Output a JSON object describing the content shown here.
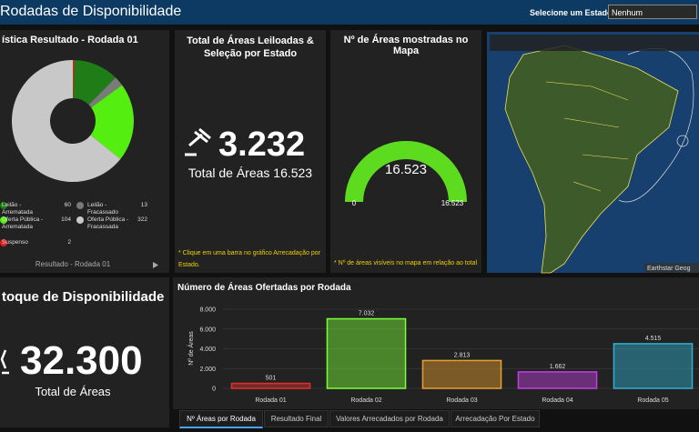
{
  "header": {
    "title": "Rodadas de Disponibilidade",
    "state_label": "Selecione um Estado",
    "state_value": "Nenhum"
  },
  "result_panel": {
    "title": "ística Resultado - Rodada 01",
    "footer": "Resultado - Rodada 01",
    "chart": {
      "type": "pie",
      "categories": [
        "Suspenso",
        "Leilão - Arrematada",
        "Leilão - Fracassado",
        "Oferta Pública - Arrematada",
        "Oferta Pública - Fracassada"
      ],
      "values": [
        2,
        60,
        13,
        104,
        322
      ],
      "colors": [
        "#e02020",
        "#1f7d17",
        "#7a7a7a",
        "#55ee11",
        "#c8c8c8"
      ]
    }
  },
  "auction_panel": {
    "title": "Total de Áreas Leiloadas & Seleção por Estado",
    "value": "3.232",
    "subtitle": "Total de Áreas 16.523",
    "note": "* Clique em uma barra no gráfico Arrecadação por Estado."
  },
  "map_count_panel": {
    "title": "Nº de Áreas mostradas no Mapa",
    "note": "* Nº de áreas visíveis no mapa em relação ao total",
    "gauge": {
      "type": "gauge",
      "value": 16523,
      "value_label": "16.523",
      "min": 0,
      "max": 16523,
      "max_label": "16.523",
      "color": "#5ddb1f"
    }
  },
  "map": {
    "attribution": "Earthstar Geog"
  },
  "stock_panel": {
    "title": "toque de Disponibilidade",
    "value": "32.300",
    "subtitle": "Total de Áreas"
  },
  "rounds_panel": {
    "chart": {
      "type": "bar",
      "title": "Número de Áreas Ofertadas por Rodada",
      "y_label": "Nº de Áreas",
      "categories": [
        "Rodada 01",
        "Rodada 02",
        "Rodada 03",
        "Rodada 04",
        "Rodada 05"
      ],
      "values": [
        501,
        7032,
        2813,
        1662,
        4515
      ],
      "value_labels": [
        "501",
        "7.032",
        "2.813",
        "1.662",
        "4.515"
      ],
      "colors": [
        "#e03030",
        "#7cff3a",
        "#e8a030",
        "#c040e0",
        "#30b0d0"
      ],
      "ylim": [
        0,
        8000
      ],
      "yticks": [
        0,
        {
          "value": 2000,
          "label": "2.000"
        },
        {
          "value": 4000,
          "label": "4.000"
        },
        {
          "value": 6000,
          "label": "6.000"
        },
        {
          "value": 8000,
          "label": "8.000"
        }
      ],
      "grid": true
    }
  },
  "tabs": [
    "Nº Áreas por Rodada",
    "Resultado Final",
    "Valores Arrecadados por Rodada",
    "Arrecadação Por Estado"
  ]
}
